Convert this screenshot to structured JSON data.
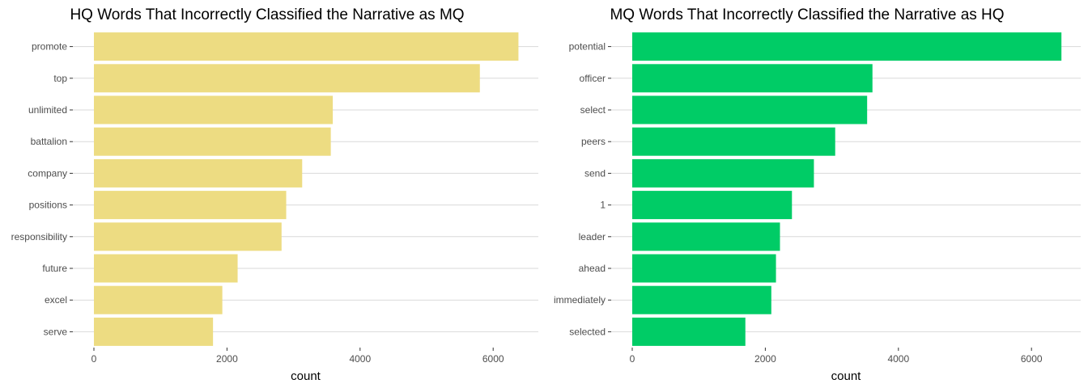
{
  "chart_data": [
    {
      "type": "bar",
      "orientation": "horizontal",
      "title": "HQ Words That Incorrectly Classified the Narrative as MQ",
      "xlabel": "count",
      "ylabel": "",
      "xlim": [
        0,
        6400
      ],
      "x_ticks": [
        0,
        2000,
        4000,
        6000
      ],
      "x_tick_labels": [
        "0",
        "2000",
        "4000",
        "6000"
      ],
      "grid": "horizontal major lines only",
      "color": "#EDDC82",
      "categories": [
        "promote",
        "top",
        "unlimited",
        "battalion",
        "company",
        "positions",
        "responsibility",
        "future",
        "excel",
        "serve"
      ],
      "values": [
        6380,
        5800,
        3590,
        3560,
        3130,
        2890,
        2820,
        2160,
        1930,
        1790
      ]
    },
    {
      "type": "bar",
      "orientation": "horizontal",
      "title": "MQ Words That Incorrectly Classified the Narrative as HQ",
      "xlabel": "count",
      "ylabel": "",
      "xlim": [
        0,
        6450
      ],
      "x_ticks": [
        0,
        2000,
        4000,
        6000
      ],
      "x_tick_labels": [
        "0",
        "2000",
        "4000",
        "6000"
      ],
      "grid": "horizontal major lines only",
      "color": "#00CC66",
      "categories": [
        "potential",
        "officer",
        "select",
        "peers",
        "send",
        "1",
        "leader",
        "ahead",
        "immediately",
        "selected"
      ],
      "values": [
        6450,
        3610,
        3530,
        3050,
        2730,
        2400,
        2220,
        2160,
        2090,
        1700
      ]
    }
  ]
}
